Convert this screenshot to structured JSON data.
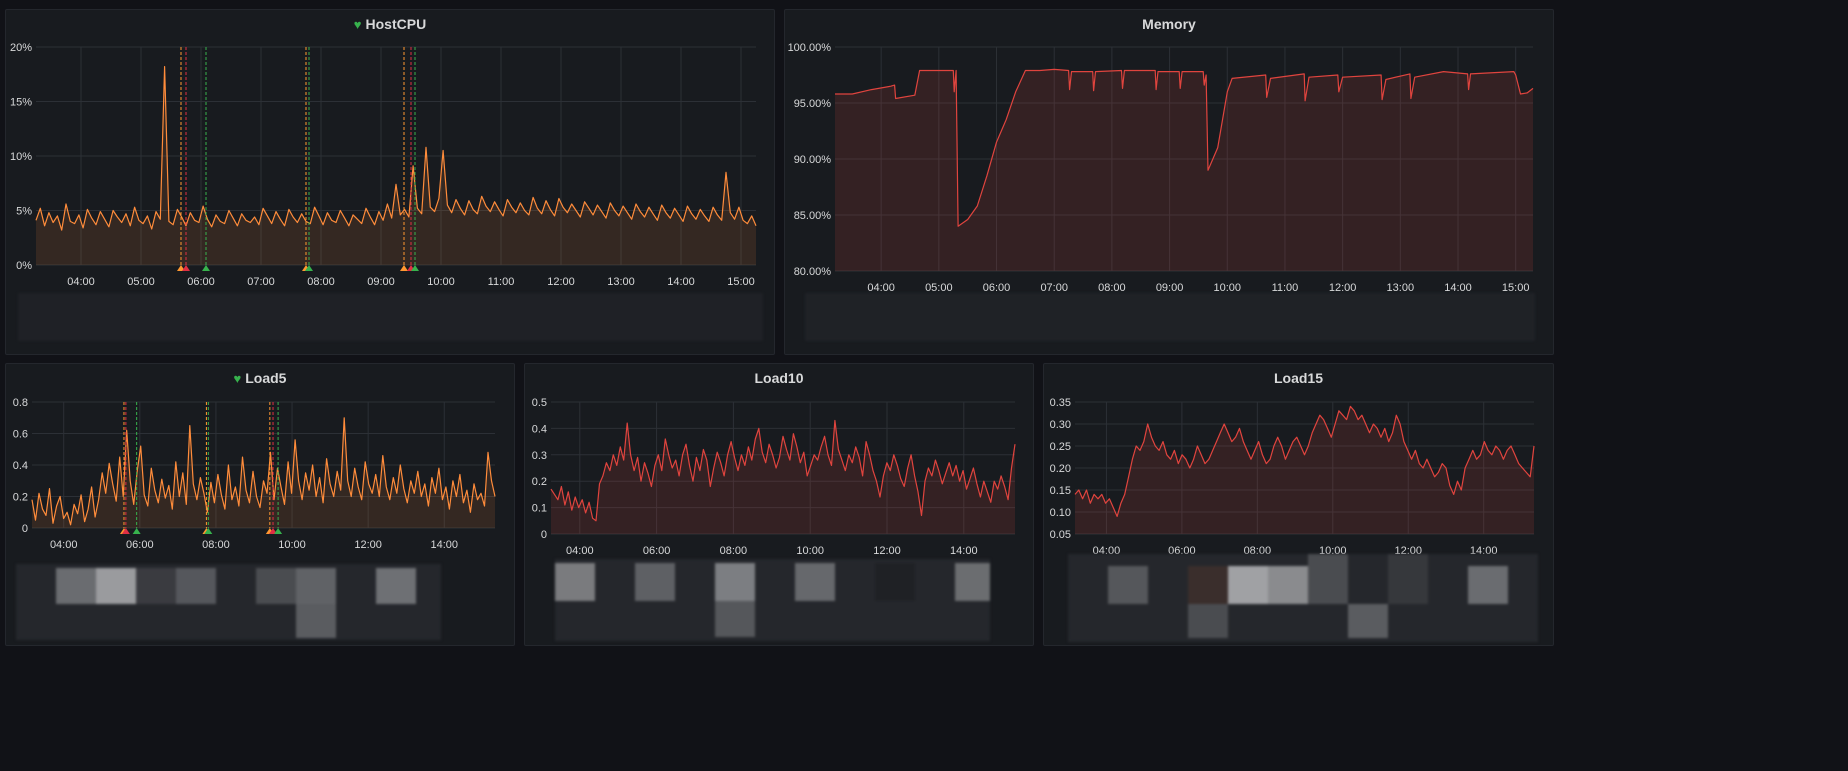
{
  "panels": [
    {
      "id": "hostcpu",
      "title": "HostCPU",
      "health_icon": "heart-icon",
      "health_color": "#37b24d"
    },
    {
      "id": "memory",
      "title": "Memory"
    },
    {
      "id": "load5",
      "title": "Load5",
      "health_icon": "heart-icon",
      "health_color": "#37b24d"
    },
    {
      "id": "load10",
      "title": "Load10"
    },
    {
      "id": "load15",
      "title": "Load15"
    }
  ],
  "colors": {
    "background": "#111217",
    "panel": "#181b1f",
    "grid": "#2c3036",
    "text": "#d8d9da",
    "cpu_line": "#ff8c3b",
    "memory_line": "#e0443e",
    "load_line": "#e0443e",
    "alert_ok": "#37b24d",
    "alert_pending": "#ff9830",
    "alert_firing": "#e02f44"
  },
  "chart_data": [
    {
      "id": "hostcpu",
      "type": "area",
      "title": "HostCPU",
      "x_ticks": [
        "04:00",
        "05:00",
        "06:00",
        "07:00",
        "08:00",
        "09:00",
        "10:00",
        "11:00",
        "12:00",
        "13:00",
        "14:00",
        "15:00"
      ],
      "x_range": [
        "03:15",
        "15:15"
      ],
      "y_ticks": [
        "0%",
        "5%",
        "10%",
        "15%",
        "20%"
      ],
      "ylim": [
        0,
        20
      ],
      "grid": true,
      "series": [
        {
          "values": [
            4.1,
            5.2,
            3.6,
            4.8,
            3.9,
            4.5,
            3.2,
            5.6,
            4.0,
            3.8,
            4.6,
            3.4,
            5.1,
            4.3,
            3.7,
            4.9,
            4.2,
            3.5,
            5.0,
            4.4,
            3.9,
            4.7,
            3.6,
            5.3,
            4.1,
            3.8,
            4.5,
            3.3,
            4.9,
            4.2,
            18.2,
            4.0,
            3.7,
            5.1,
            4.4,
            3.6,
            4.8,
            4.1,
            3.9,
            5.4,
            4.2,
            3.5,
            4.6,
            4.0,
            3.8,
            5.0,
            4.3,
            3.6,
            4.7,
            4.1,
            3.9,
            4.4,
            3.7,
            5.2,
            4.5,
            3.8,
            4.9,
            4.2,
            3.6,
            5.1,
            4.4,
            3.9,
            4.7,
            4.0,
            3.8,
            5.3,
            4.5,
            3.7,
            4.8,
            4.1,
            3.9,
            5.0,
            4.3,
            3.6,
            4.6,
            4.2,
            3.8,
            5.2,
            4.4,
            3.7,
            4.9,
            4.1,
            5.6,
            4.3,
            7.4,
            4.6,
            5.1,
            4.4,
            9.1,
            5.2,
            4.7,
            10.8,
            5.3,
            4.9,
            6.1,
            10.5,
            5.5,
            4.8,
            6.0,
            5.2,
            4.6,
            5.9,
            5.1,
            4.7,
            6.3,
            5.4,
            4.9,
            5.8,
            5.1,
            4.5,
            6.0,
            5.3,
            4.8,
            5.7,
            5.0,
            4.6,
            6.2,
            5.2,
            4.7,
            5.9,
            5.1,
            4.5,
            6.1,
            5.3,
            4.8,
            5.6,
            5.0,
            4.4,
            5.8,
            5.2,
            4.6,
            5.5,
            4.9,
            4.3,
            5.7,
            5.0,
            4.5,
            5.4,
            4.8,
            4.2,
            5.6,
            4.9,
            4.4,
            5.3,
            4.7,
            4.1,
            5.5,
            4.8,
            4.3,
            5.2,
            4.6,
            4.0,
            5.4,
            4.7,
            4.2,
            5.1,
            4.5,
            4.0,
            5.3,
            4.6,
            4.1,
            8.5,
            4.8,
            4.2,
            5.3,
            4.1,
            3.8,
            4.5,
            3.6
          ]
        }
      ],
      "annotations": [
        {
          "time": "05:40",
          "state": "pending"
        },
        {
          "time": "05:45",
          "state": "firing"
        },
        {
          "time": "06:05",
          "state": "ok"
        },
        {
          "time": "07:45",
          "state": "pending"
        },
        {
          "time": "07:48",
          "state": "ok"
        },
        {
          "time": "09:23",
          "state": "pending"
        },
        {
          "time": "09:30",
          "state": "firing"
        },
        {
          "time": "09:34",
          "state": "ok"
        }
      ]
    },
    {
      "id": "memory",
      "type": "area",
      "title": "Memory",
      "x_ticks": [
        "04:00",
        "05:00",
        "06:00",
        "07:00",
        "08:00",
        "09:00",
        "10:00",
        "11:00",
        "12:00",
        "13:00",
        "14:00",
        "15:00"
      ],
      "x_range": [
        "03:12",
        "15:18"
      ],
      "y_ticks": [
        "80.00%",
        "85.00%",
        "90.00%",
        "95.00%",
        "100.00%"
      ],
      "ylim": [
        80,
        100
      ],
      "grid": true,
      "series": [
        {
          "points": [
            [
              "03:12",
              95.8
            ],
            [
              "03:30",
              95.8
            ],
            [
              "03:50",
              96.2
            ],
            [
              "04:10",
              96.5
            ],
            [
              "04:14",
              96.6
            ],
            [
              "04:15",
              95.4
            ],
            [
              "04:35",
              95.7
            ],
            [
              "04:40",
              97.9
            ],
            [
              "05:15",
              97.9
            ],
            [
              "05:16",
              96.0
            ],
            [
              "05:18",
              97.9
            ],
            [
              "05:20",
              84.0
            ],
            [
              "05:30",
              84.6
            ],
            [
              "05:40",
              85.8
            ],
            [
              "05:50",
              88.5
            ],
            [
              "06:00",
              91.5
            ],
            [
              "06:10",
              93.5
            ],
            [
              "06:20",
              96.0
            ],
            [
              "06:30",
              97.9
            ],
            [
              "06:45",
              97.9
            ],
            [
              "07:00",
              98.0
            ],
            [
              "07:15",
              97.9
            ],
            [
              "07:16",
              96.2
            ],
            [
              "07:18",
              97.8
            ],
            [
              "07:40",
              97.8
            ],
            [
              "07:41",
              96.1
            ],
            [
              "07:43",
              97.8
            ],
            [
              "08:10",
              97.9
            ],
            [
              "08:11",
              96.3
            ],
            [
              "08:13",
              97.9
            ],
            [
              "08:45",
              97.9
            ],
            [
              "08:46",
              96.2
            ],
            [
              "08:48",
              97.8
            ],
            [
              "09:10",
              97.8
            ],
            [
              "09:11",
              96.3
            ],
            [
              "09:13",
              97.8
            ],
            [
              "09:35",
              97.8
            ],
            [
              "09:36",
              96.6
            ],
            [
              "09:38",
              97.5
            ],
            [
              "09:40",
              89.0
            ],
            [
              "09:50",
              91.0
            ],
            [
              "09:55",
              93.5
            ],
            [
              "10:00",
              96.0
            ],
            [
              "10:05",
              97.2
            ],
            [
              "10:40",
              97.5
            ],
            [
              "10:41",
              95.5
            ],
            [
              "10:45",
              97.2
            ],
            [
              "11:20",
              97.6
            ],
            [
              "11:21",
              95.2
            ],
            [
              "11:25",
              97.3
            ],
            [
              "11:55",
              97.5
            ],
            [
              "11:56",
              96.0
            ],
            [
              "12:00",
              97.3
            ],
            [
              "12:40",
              97.5
            ],
            [
              "12:41",
              95.3
            ],
            [
              "12:45",
              97.1
            ],
            [
              "13:10",
              97.6
            ],
            [
              "13:11",
              95.4
            ],
            [
              "13:15",
              97.3
            ],
            [
              "13:45",
              97.8
            ],
            [
              "14:10",
              97.6
            ],
            [
              "14:11",
              96.2
            ],
            [
              "14:13",
              97.6
            ],
            [
              "14:58",
              97.8
            ],
            [
              "15:00",
              97.5
            ],
            [
              "15:05",
              95.8
            ],
            [
              "15:12",
              95.9
            ],
            [
              "15:18",
              96.3
            ]
          ]
        }
      ]
    },
    {
      "id": "load5",
      "type": "area",
      "title": "Load5",
      "x_ticks": [
        "04:00",
        "06:00",
        "08:00",
        "10:00",
        "12:00",
        "14:00"
      ],
      "x_range": [
        "03:10",
        "15:20"
      ],
      "y_ticks": [
        "0",
        "0.2",
        "0.4",
        "0.6",
        "0.8"
      ],
      "ylim": [
        0,
        0.8
      ],
      "grid": true,
      "series": [
        {
          "values": [
            0.18,
            0.05,
            0.22,
            0.12,
            0.08,
            0.25,
            0.03,
            0.14,
            0.2,
            0.06,
            0.1,
            0.02,
            0.15,
            0.09,
            0.21,
            0.04,
            0.12,
            0.26,
            0.07,
            0.18,
            0.35,
            0.22,
            0.41,
            0.28,
            0.17,
            0.45,
            0.2,
            0.62,
            0.3,
            0.15,
            0.36,
            0.52,
            0.21,
            0.14,
            0.38,
            0.24,
            0.16,
            0.31,
            0.19,
            0.27,
            0.12,
            0.42,
            0.2,
            0.35,
            0.15,
            0.65,
            0.28,
            0.18,
            0.32,
            0.22,
            0.1,
            0.29,
            0.16,
            0.34,
            0.21,
            0.12,
            0.4,
            0.18,
            0.26,
            0.14,
            0.45,
            0.24,
            0.16,
            0.36,
            0.2,
            0.13,
            0.3,
            0.22,
            0.48,
            0.18,
            0.38,
            0.26,
            0.15,
            0.42,
            0.22,
            0.56,
            0.3,
            0.18,
            0.35,
            0.24,
            0.4,
            0.2,
            0.32,
            0.16,
            0.44,
            0.28,
            0.2,
            0.36,
            0.24,
            0.7,
            0.3,
            0.2,
            0.38,
            0.26,
            0.18,
            0.42,
            0.28,
            0.22,
            0.34,
            0.2,
            0.46,
            0.26,
            0.18,
            0.32,
            0.22,
            0.4,
            0.25,
            0.16,
            0.3,
            0.22,
            0.36,
            0.2,
            0.28,
            0.14,
            0.32,
            0.22,
            0.38,
            0.18,
            0.26,
            0.12,
            0.3,
            0.2,
            0.34,
            0.16,
            0.24,
            0.1,
            0.28,
            0.18,
            0.22,
            0.14,
            0.48,
            0.3,
            0.2
          ]
        }
      ],
      "annotations": [
        {
          "time": "05:35",
          "state": "pending"
        },
        {
          "time": "05:38",
          "state": "firing"
        },
        {
          "time": "05:55",
          "state": "ok"
        },
        {
          "time": "07:45",
          "state": "pending"
        },
        {
          "time": "07:48",
          "state": "ok"
        },
        {
          "time": "09:25",
          "state": "pending"
        },
        {
          "time": "09:30",
          "state": "firing"
        },
        {
          "time": "09:38",
          "state": "ok"
        }
      ]
    },
    {
      "id": "load10",
      "type": "area",
      "title": "Load10",
      "x_ticks": [
        "04:00",
        "06:00",
        "08:00",
        "10:00",
        "12:00",
        "14:00"
      ],
      "x_range": [
        "03:15",
        "15:20"
      ],
      "y_ticks": [
        "0",
        "0.1",
        "0.2",
        "0.3",
        "0.4",
        "0.5"
      ],
      "ylim": [
        0,
        0.5
      ],
      "grid": true,
      "series": [
        {
          "values": [
            0.17,
            0.15,
            0.13,
            0.18,
            0.11,
            0.16,
            0.09,
            0.14,
            0.1,
            0.13,
            0.08,
            0.12,
            0.06,
            0.05,
            0.19,
            0.22,
            0.27,
            0.24,
            0.3,
            0.26,
            0.33,
            0.28,
            0.42,
            0.3,
            0.24,
            0.29,
            0.2,
            0.27,
            0.23,
            0.18,
            0.26,
            0.3,
            0.24,
            0.36,
            0.3,
            0.25,
            0.28,
            0.22,
            0.3,
            0.34,
            0.26,
            0.2,
            0.29,
            0.24,
            0.32,
            0.28,
            0.18,
            0.25,
            0.31,
            0.27,
            0.22,
            0.3,
            0.35,
            0.29,
            0.24,
            0.3,
            0.26,
            0.33,
            0.28,
            0.36,
            0.4,
            0.31,
            0.27,
            0.34,
            0.3,
            0.25,
            0.29,
            0.37,
            0.32,
            0.28,
            0.38,
            0.33,
            0.27,
            0.31,
            0.22,
            0.26,
            0.3,
            0.28,
            0.33,
            0.37,
            0.3,
            0.26,
            0.43,
            0.32,
            0.28,
            0.24,
            0.3,
            0.27,
            0.33,
            0.29,
            0.22,
            0.35,
            0.3,
            0.24,
            0.2,
            0.14,
            0.22,
            0.27,
            0.24,
            0.3,
            0.26,
            0.21,
            0.18,
            0.25,
            0.3,
            0.22,
            0.16,
            0.07,
            0.2,
            0.25,
            0.22,
            0.28,
            0.24,
            0.19,
            0.23,
            0.27,
            0.22,
            0.26,
            0.2,
            0.24,
            0.17,
            0.21,
            0.25,
            0.19,
            0.14,
            0.2,
            0.16,
            0.12,
            0.2,
            0.17,
            0.22,
            0.18,
            0.13,
            0.25,
            0.34
          ]
        }
      ]
    },
    {
      "id": "load15",
      "type": "area",
      "title": "Load15",
      "x_ticks": [
        "04:00",
        "06:00",
        "08:00",
        "10:00",
        "12:00",
        "14:00"
      ],
      "x_range": [
        "03:10",
        "15:20"
      ],
      "y_ticks": [
        "0.05",
        "0.10",
        "0.15",
        "0.20",
        "0.25",
        "0.30",
        "0.35"
      ],
      "ylim": [
        0.05,
        0.35
      ],
      "grid": true,
      "series": [
        {
          "values": [
            0.14,
            0.15,
            0.13,
            0.15,
            0.12,
            0.14,
            0.13,
            0.14,
            0.12,
            0.13,
            0.11,
            0.09,
            0.12,
            0.14,
            0.18,
            0.22,
            0.25,
            0.24,
            0.26,
            0.3,
            0.27,
            0.25,
            0.24,
            0.26,
            0.23,
            0.22,
            0.24,
            0.21,
            0.23,
            0.22,
            0.2,
            0.22,
            0.25,
            0.23,
            0.21,
            0.22,
            0.24,
            0.26,
            0.28,
            0.3,
            0.28,
            0.26,
            0.27,
            0.29,
            0.26,
            0.24,
            0.22,
            0.24,
            0.26,
            0.23,
            0.21,
            0.22,
            0.25,
            0.27,
            0.25,
            0.22,
            0.24,
            0.26,
            0.27,
            0.25,
            0.23,
            0.25,
            0.28,
            0.3,
            0.32,
            0.31,
            0.29,
            0.27,
            0.3,
            0.33,
            0.32,
            0.31,
            0.34,
            0.33,
            0.31,
            0.32,
            0.3,
            0.28,
            0.3,
            0.29,
            0.27,
            0.29,
            0.26,
            0.28,
            0.32,
            0.3,
            0.26,
            0.24,
            0.22,
            0.24,
            0.21,
            0.2,
            0.22,
            0.2,
            0.18,
            0.19,
            0.21,
            0.2,
            0.16,
            0.14,
            0.17,
            0.15,
            0.2,
            0.22,
            0.24,
            0.22,
            0.23,
            0.26,
            0.24,
            0.23,
            0.25,
            0.24,
            0.22,
            0.24,
            0.25,
            0.23,
            0.21,
            0.2,
            0.19,
            0.18,
            0.25
          ]
        }
      ]
    }
  ]
}
